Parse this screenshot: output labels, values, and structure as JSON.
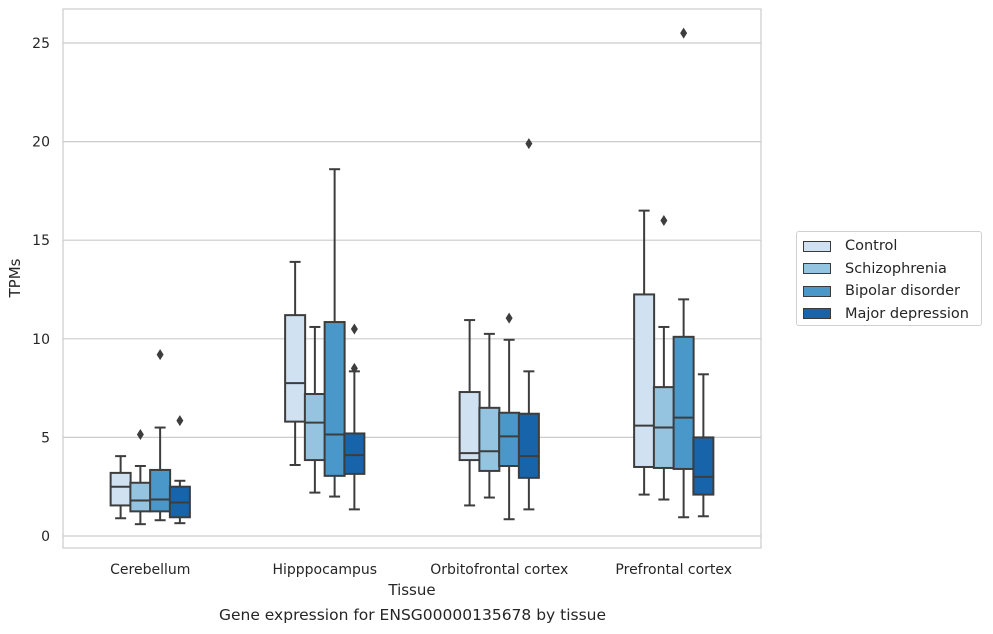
{
  "chart_data": {
    "type": "box",
    "xlabel": "Tissue",
    "ylabel": "TPMs",
    "ylim": [
      -0.5,
      26.6
    ],
    "yticks": [
      0,
      5,
      10,
      15,
      20,
      25
    ],
    "grid": "horizontal",
    "legend_position": "right",
    "categories": [
      "Cerebellum",
      "Hipppocampus",
      "Orbitofrontal cortex",
      "Prefrontal cortex"
    ],
    "series": [
      {
        "name": "Control",
        "color": "#d0e1f2",
        "boxes": [
          {
            "whisker_low": 0.9,
            "q1": 1.55,
            "median": 2.5,
            "q3": 3.2,
            "whisker_high": 4.05,
            "outliers": []
          },
          {
            "whisker_low": 3.6,
            "q1": 5.8,
            "median": 7.75,
            "q3": 11.2,
            "whisker_high": 13.9,
            "outliers": []
          },
          {
            "whisker_low": 1.55,
            "q1": 3.85,
            "median": 4.2,
            "q3": 7.3,
            "whisker_high": 10.95,
            "outliers": []
          },
          {
            "whisker_low": 2.1,
            "q1": 3.5,
            "median": 5.6,
            "q3": 12.25,
            "whisker_high": 16.5,
            "outliers": []
          }
        ]
      },
      {
        "name": "Schizophrenia",
        "color": "#94c4df",
        "boxes": [
          {
            "whisker_low": 0.6,
            "q1": 1.25,
            "median": 1.8,
            "q3": 2.7,
            "whisker_high": 3.55,
            "outliers": [
              5.15
            ]
          },
          {
            "whisker_low": 2.2,
            "q1": 3.85,
            "median": 5.75,
            "q3": 7.2,
            "whisker_high": 10.6,
            "outliers": []
          },
          {
            "whisker_low": 1.95,
            "q1": 3.3,
            "median": 4.3,
            "q3": 6.5,
            "whisker_high": 10.25,
            "outliers": []
          },
          {
            "whisker_low": 1.85,
            "q1": 3.45,
            "median": 5.5,
            "q3": 7.55,
            "whisker_high": 10.6,
            "outliers": [
              16.0
            ]
          }
        ]
      },
      {
        "name": "Bipolar disorder",
        "color": "#4a98c9",
        "boxes": [
          {
            "whisker_low": 0.8,
            "q1": 1.25,
            "median": 1.85,
            "q3": 3.35,
            "whisker_high": 5.5,
            "outliers": [
              9.2
            ]
          },
          {
            "whisker_low": 2.0,
            "q1": 3.05,
            "median": 5.15,
            "q3": 10.85,
            "whisker_high": 18.6,
            "outliers": []
          },
          {
            "whisker_low": 0.85,
            "q1": 3.55,
            "median": 5.05,
            "q3": 6.25,
            "whisker_high": 9.95,
            "outliers": [
              11.05
            ]
          },
          {
            "whisker_low": 0.95,
            "q1": 3.4,
            "median": 6.0,
            "q3": 10.1,
            "whisker_high": 12.0,
            "outliers": [
              25.5
            ]
          }
        ]
      },
      {
        "name": "Major depression",
        "color": "#1764ab",
        "boxes": [
          {
            "whisker_low": 0.65,
            "q1": 0.95,
            "median": 1.7,
            "q3": 2.5,
            "whisker_high": 2.8,
            "outliers": [
              5.85
            ]
          },
          {
            "whisker_low": 1.35,
            "q1": 3.15,
            "median": 4.1,
            "q3": 5.2,
            "whisker_high": 8.35,
            "outliers": [
              8.5,
              10.5
            ]
          },
          {
            "whisker_low": 1.35,
            "q1": 2.95,
            "median": 4.05,
            "q3": 6.2,
            "whisker_high": 8.35,
            "outliers": [
              19.9
            ]
          },
          {
            "whisker_low": 1.0,
            "q1": 2.1,
            "median": 3.0,
            "q3": 5.0,
            "whisker_high": 8.2,
            "outliers": []
          }
        ]
      }
    ]
  },
  "caption": "Gene expression for ENSG00000135678 by tissue"
}
